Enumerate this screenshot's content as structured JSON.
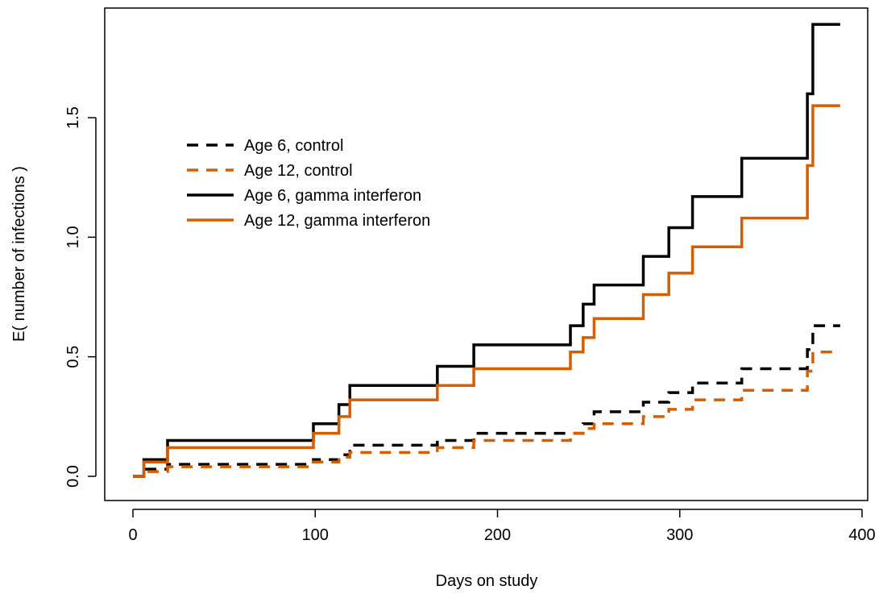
{
  "chart_data": {
    "type": "line",
    "title": "",
    "xlabel": "Days on study",
    "ylabel": "E( number of infections )",
    "xlim": [
      0,
      400
    ],
    "ylim": [
      0,
      1.9
    ],
    "xticks": [
      0,
      100,
      200,
      300,
      400
    ],
    "yticks": [
      0.0,
      0.5,
      1.0,
      1.5
    ],
    "xtick_labels": [
      "0",
      "100",
      "200",
      "300",
      "400"
    ],
    "ytick_labels": [
      "0.0",
      "0.5",
      "1.0",
      "1.5"
    ],
    "grid": false,
    "legend_placement": "upper-left",
    "series": [
      {
        "name": "Age 6, control",
        "color": "#000000",
        "dash": "dashed",
        "step": true,
        "x": [
          0,
          6,
          19,
          99,
          113,
          119,
          167,
          187,
          240,
          247,
          253,
          280,
          294,
          307,
          334,
          370,
          373,
          388
        ],
        "y": [
          0.0,
          0.03,
          0.05,
          0.07,
          0.09,
          0.13,
          0.15,
          0.18,
          0.18,
          0.22,
          0.27,
          0.31,
          0.35,
          0.39,
          0.45,
          0.53,
          0.63,
          0.63
        ]
      },
      {
        "name": "Age 12, control",
        "color": "#D55E00",
        "dash": "dashed",
        "step": true,
        "x": [
          0,
          6,
          19,
          99,
          113,
          119,
          167,
          187,
          240,
          247,
          253,
          280,
          294,
          307,
          334,
          370,
          373,
          388
        ],
        "y": [
          0.0,
          0.02,
          0.04,
          0.06,
          0.08,
          0.1,
          0.12,
          0.15,
          0.18,
          0.2,
          0.22,
          0.25,
          0.28,
          0.32,
          0.36,
          0.44,
          0.52,
          0.52
        ]
      },
      {
        "name": "Age 6, gamma interferon",
        "color": "#000000",
        "dash": "solid",
        "step": true,
        "x": [
          0,
          6,
          19,
          99,
          113,
          119,
          167,
          187,
          240,
          247,
          253,
          280,
          294,
          307,
          334,
          370,
          373,
          388
        ],
        "y": [
          0.0,
          0.07,
          0.15,
          0.22,
          0.3,
          0.38,
          0.46,
          0.55,
          0.63,
          0.72,
          0.8,
          0.92,
          1.04,
          1.17,
          1.33,
          1.6,
          1.89,
          1.89
        ]
      },
      {
        "name": "Age 12, gamma interferon",
        "color": "#D55E00",
        "dash": "solid",
        "step": true,
        "x": [
          0,
          6,
          19,
          99,
          113,
          119,
          167,
          187,
          240,
          247,
          253,
          280,
          294,
          307,
          334,
          370,
          373,
          388
        ],
        "y": [
          0.0,
          0.06,
          0.12,
          0.18,
          0.25,
          0.32,
          0.38,
          0.45,
          0.52,
          0.58,
          0.66,
          0.76,
          0.85,
          0.96,
          1.08,
          1.3,
          1.55,
          1.55
        ]
      }
    ]
  }
}
